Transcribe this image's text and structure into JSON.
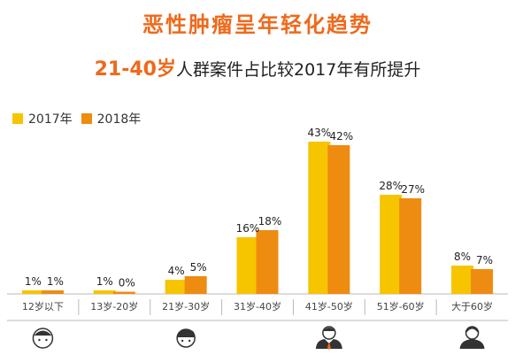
{
  "header": {
    "title": "恶性肿瘤呈年轻化趋势",
    "subtitle_highlight": "21-40岁",
    "subtitle_rest": "人群案件占比较2017年有所提升"
  },
  "colors": {
    "accent": "#ee6a1c",
    "series_2017": "#f7c400",
    "series_2018": "#ee8b11",
    "axis": "#b9b9b9"
  },
  "chart_data": {
    "type": "bar",
    "title": "恶性肿瘤呈年轻化趋势",
    "subtitle": "21-40岁人群案件占比较2017年有所提升",
    "xlabel": "",
    "ylabel": "",
    "ylim": [
      0,
      45
    ],
    "legend": "top-left",
    "grid": false,
    "categories": [
      "12岁以下",
      "13岁-20岁",
      "21岁-30岁",
      "31岁-40岁",
      "41岁-50岁",
      "51岁-60岁",
      "大于60岁"
    ],
    "series": [
      {
        "name": "2017年",
        "values": [
          1,
          1,
          4,
          16,
          43,
          28,
          8
        ],
        "labels": [
          "1%",
          "1%",
          "4%",
          "16%",
          "43%",
          "28%",
          "8%"
        ]
      },
      {
        "name": "2018年",
        "values": [
          1,
          0,
          5,
          18,
          42,
          27,
          7
        ],
        "labels": [
          "1%",
          "0%",
          "5%",
          "18%",
          "42%",
          "27%",
          "7%"
        ]
      }
    ],
    "category_icons": [
      "child-face-icon",
      "",
      "young-man-icon",
      "",
      "businessman-icon",
      "",
      "elderly-person-icon"
    ]
  }
}
